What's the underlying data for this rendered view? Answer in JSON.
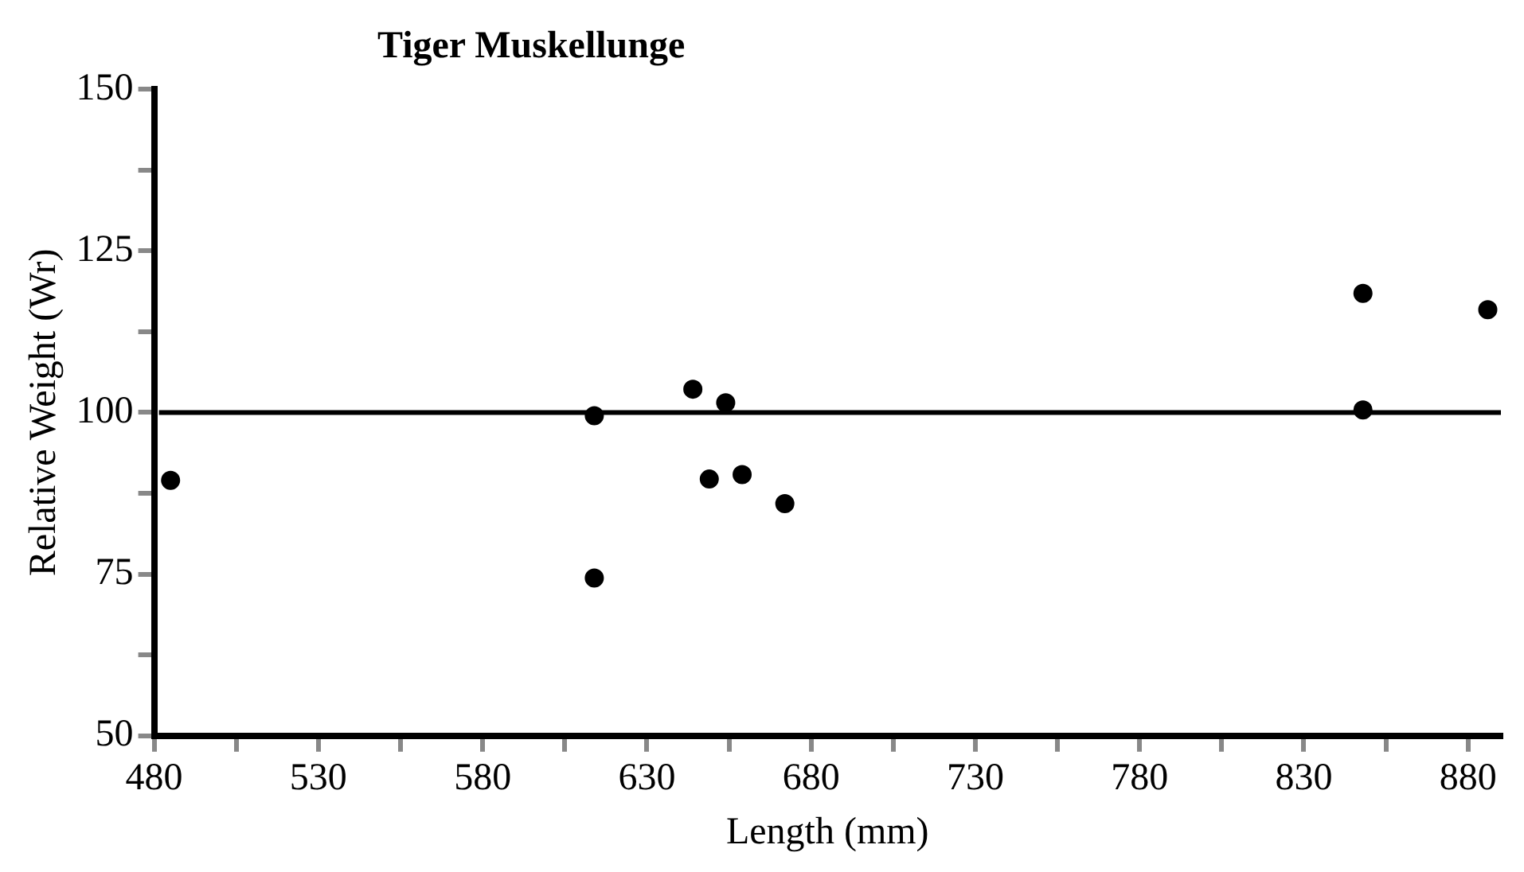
{
  "chart_data": {
    "type": "scatter",
    "title": "Tiger Muskellunge",
    "xlabel": "Length (mm)",
    "ylabel": "Relative Weight (Wr)",
    "x": [
      485,
      614,
      614,
      644,
      649,
      654,
      659,
      672,
      848,
      848,
      886
    ],
    "values": [
      89.5,
      99.5,
      74.4,
      103.6,
      89.7,
      101.5,
      90.4,
      85.9,
      118.4,
      100.4,
      115.9
    ],
    "color": "#000000",
    "marker": "circle",
    "xlim": [
      480,
      890
    ],
    "xticks": [
      480,
      {
        "value": 505,
        "label": null
      },
      530,
      {
        "value": 555,
        "label": null
      },
      580,
      {
        "value": 605,
        "label": null
      },
      630,
      {
        "value": 655,
        "label": null
      },
      680,
      {
        "value": 705,
        "label": null
      },
      730,
      {
        "value": 755,
        "label": null
      },
      780,
      {
        "value": 805,
        "label": null
      },
      830,
      {
        "value": 855,
        "label": null
      },
      880
    ],
    "ylim": [
      50,
      150
    ],
    "yticks": [
      50,
      {
        "value": 62.5,
        "label": null
      },
      75,
      {
        "value": 87.5,
        "label": null
      },
      100,
      {
        "value": 112.5,
        "label": null
      },
      125,
      {
        "value": 137.5,
        "label": null
      },
      150
    ],
    "ref_lines": [
      {
        "axis": "y",
        "value": 100,
        "color": "#000000"
      }
    ],
    "grid": false,
    "legend": false
  }
}
